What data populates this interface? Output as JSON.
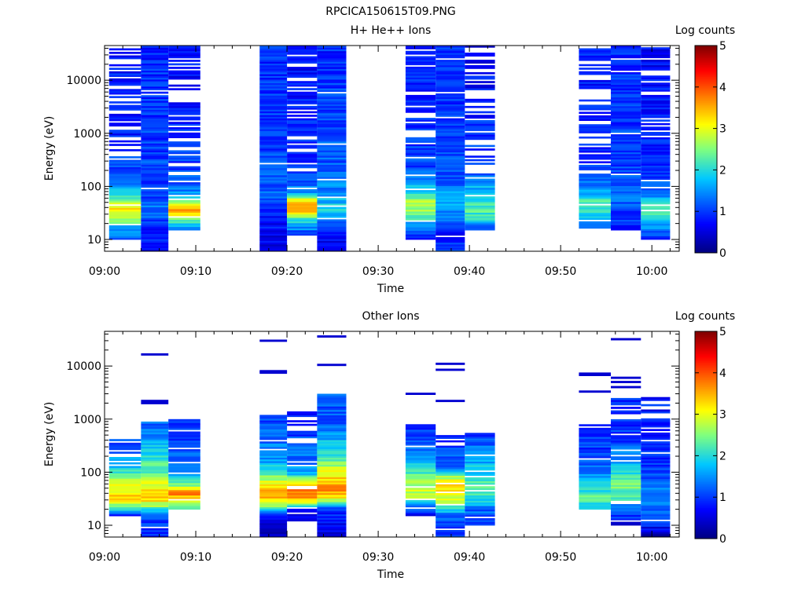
{
  "figure_title": "RPCICA150615T09.PNG",
  "colors": {
    "colormap_stops": [
      "#00007f",
      "#0000ff",
      "#00c8ff",
      "#7fff7f",
      "#ffff00",
      "#ff8000",
      "#ff0000",
      "#7f0000"
    ]
  },
  "chart_data": [
    {
      "type": "heatmap",
      "title": "H+ He++ Ions",
      "xlabel": "Time",
      "ylabel": "Energy (eV)",
      "y_scale": "log",
      "ylim": [
        6,
        45000
      ],
      "xlim": [
        "09:00",
        "10:03"
      ],
      "x_ticks": [
        "09:00",
        "09:10",
        "09:20",
        "09:30",
        "09:40",
        "09:50",
        "10:00"
      ],
      "y_ticks": [
        "10",
        "100",
        "1000",
        "10000"
      ],
      "colorbar": {
        "label": "Log counts",
        "range": [
          0,
          5
        ],
        "ticks": [
          "0",
          "1",
          "2",
          "3",
          "4",
          "5"
        ]
      },
      "columns": [
        {
          "start": "09:00.5",
          "end": "09:04",
          "emin": 10,
          "emax": 40000,
          "profile": [
            [
              10,
              1.1
            ],
            [
              16,
              1.6
            ],
            [
              25,
              2.6
            ],
            [
              35,
              3.2
            ],
            [
              50,
              2.8
            ],
            [
              80,
              1.8
            ],
            [
              150,
              1.1
            ],
            [
              600,
              0.9
            ],
            [
              40000,
              0.8
            ]
          ],
          "gap": 0.35,
          "seed": 1
        },
        {
          "start": "09:04",
          "end": "09:07",
          "emin": 6,
          "emax": 45000,
          "profile": [
            [
              6,
              0.7
            ],
            [
              15,
              0.8
            ],
            [
              25,
              1.2
            ],
            [
              40,
              1.4
            ],
            [
              70,
              1.0
            ],
            [
              200,
              1.1
            ],
            [
              1000,
              1.0
            ],
            [
              45000,
              0.9
            ]
          ],
          "gap": 0.05,
          "seed": 2
        },
        {
          "start": "09:07",
          "end": "09:10.5",
          "emin": 15,
          "emax": 45000,
          "profile": [
            [
              15,
              1.0
            ],
            [
              25,
              2.5
            ],
            [
              35,
              3.8
            ],
            [
              50,
              2.6
            ],
            [
              80,
              1.4
            ],
            [
              200,
              1.0
            ],
            [
              45000,
              0.7
            ]
          ],
          "gap": 0.3,
          "seed": 3
        },
        {
          "start": "09:17",
          "end": "09:20",
          "emin": 6,
          "emax": 45000,
          "profile": [
            [
              6,
              0.5
            ],
            [
              15,
              0.7
            ],
            [
              30,
              0.9
            ],
            [
              60,
              1.2
            ],
            [
              200,
              1.1
            ],
            [
              1000,
              1.0
            ],
            [
              45000,
              0.9
            ]
          ],
          "gap": 0.02,
          "seed": 4
        },
        {
          "start": "09:20",
          "end": "09:23.3",
          "emin": 12,
          "emax": 45000,
          "profile": [
            [
              12,
              0.9
            ],
            [
              25,
              2.2
            ],
            [
              35,
              3.5
            ],
            [
              55,
              3.2
            ],
            [
              80,
              1.4
            ],
            [
              200,
              1.0
            ],
            [
              45000,
              0.7
            ]
          ],
          "gap": 0.3,
          "seed": 5
        },
        {
          "start": "09:23.3",
          "end": "09:26.5",
          "emin": 6,
          "emax": 45000,
          "profile": [
            [
              6,
              0.6
            ],
            [
              15,
              0.8
            ],
            [
              25,
              1.6
            ],
            [
              40,
              2.0
            ],
            [
              60,
              1.6
            ],
            [
              200,
              1.2
            ],
            [
              45000,
              0.9
            ]
          ],
          "gap": 0.05,
          "seed": 6
        },
        {
          "start": "09:33",
          "end": "09:36.3",
          "emin": 10,
          "emax": 45000,
          "profile": [
            [
              10,
              0.9
            ],
            [
              20,
              1.6
            ],
            [
              30,
              2.5
            ],
            [
              50,
              2.7
            ],
            [
              90,
              1.8
            ],
            [
              200,
              1.1
            ],
            [
              45000,
              0.8
            ]
          ],
          "gap": 0.2,
          "seed": 7
        },
        {
          "start": "09:36.3",
          "end": "09:39.5",
          "emin": 6,
          "emax": 45000,
          "profile": [
            [
              6,
              1.0
            ],
            [
              15,
              0.8
            ],
            [
              30,
              1.4
            ],
            [
              60,
              1.8
            ],
            [
              150,
              1.1
            ],
            [
              45000,
              0.9
            ]
          ],
          "gap": 0.08,
          "seed": 8
        },
        {
          "start": "09:39.5",
          "end": "09:42.8",
          "emin": 15,
          "emax": 45000,
          "profile": [
            [
              15,
              1.0
            ],
            [
              25,
              2.0
            ],
            [
              40,
              2.3
            ],
            [
              70,
              1.9
            ],
            [
              200,
              1.1
            ],
            [
              45000,
              0.6
            ]
          ],
          "gap": 0.45,
          "seed": 9
        },
        {
          "start": "09:52",
          "end": "09:55.5",
          "emin": 15,
          "emax": 40000,
          "profile": [
            [
              15,
              0.9
            ],
            [
              30,
              2.1
            ],
            [
              50,
              2.3
            ],
            [
              80,
              1.5
            ],
            [
              200,
              1.0
            ],
            [
              40000,
              0.8
            ]
          ],
          "gap": 0.35,
          "seed": 10
        },
        {
          "start": "09:55.5",
          "end": "09:58.8",
          "emin": 15,
          "emax": 45000,
          "profile": [
            [
              15,
              0.8
            ],
            [
              30,
              1.0
            ],
            [
              60,
              1.3
            ],
            [
              150,
              1.1
            ],
            [
              45000,
              0.9
            ]
          ],
          "gap": 0.05,
          "seed": 11
        },
        {
          "start": "09:58.8",
          "end": "10:02",
          "emin": 10,
          "emax": 45000,
          "profile": [
            [
              10,
              1.0
            ],
            [
              20,
              1.5
            ],
            [
              30,
              2.1
            ],
            [
              50,
              1.9
            ],
            [
              80,
              1.2
            ],
            [
              300,
              0.9
            ],
            [
              45000,
              0.7
            ]
          ],
          "gap": 0.15,
          "seed": 12
        }
      ]
    },
    {
      "type": "heatmap",
      "title": "Other Ions",
      "xlabel": "Time",
      "ylabel": "Energy (eV)",
      "y_scale": "log",
      "ylim": [
        6,
        45000
      ],
      "xlim": [
        "09:00",
        "10:03"
      ],
      "x_ticks": [
        "09:00",
        "09:10",
        "09:20",
        "09:30",
        "09:40",
        "09:50",
        "10:00"
      ],
      "y_ticks": [
        "10",
        "100",
        "1000",
        "10000"
      ],
      "colorbar": {
        "label": "Log counts",
        "range": [
          0,
          5
        ],
        "ticks": [
          "0",
          "1",
          "2",
          "3",
          "4",
          "5"
        ]
      },
      "columns": [
        {
          "start": "09:00.5",
          "end": "09:04",
          "emin": 15,
          "emax": 420,
          "profile": [
            [
              15,
              0.7
            ],
            [
              22,
              2.3
            ],
            [
              35,
              3.4
            ],
            [
              55,
              3.0
            ],
            [
              90,
              2.3
            ],
            [
              150,
              1.6
            ],
            [
              420,
              1.1
            ]
          ],
          "gap": 0.25,
          "seed": 21,
          "extra": []
        },
        {
          "start": "09:04",
          "end": "09:07",
          "emin": 6,
          "emax": 900,
          "profile": [
            [
              6,
              1.0
            ],
            [
              15,
              1.1
            ],
            [
              25,
              2.8
            ],
            [
              35,
              3.5
            ],
            [
              60,
              3.0
            ],
            [
              100,
              2.4
            ],
            [
              250,
              1.9
            ],
            [
              900,
              1.2
            ]
          ],
          "gap": 0.05,
          "seed": 22,
          "extra": [
            2200,
            2000,
            16500
          ]
        },
        {
          "start": "09:07",
          "end": "09:10.5",
          "emin": 20,
          "emax": 1000,
          "profile": [
            [
              20,
              2.0
            ],
            [
              30,
              3.0
            ],
            [
              40,
              3.8
            ],
            [
              60,
              2.4
            ],
            [
              120,
              1.3
            ],
            [
              1000,
              0.9
            ]
          ],
          "gap": 0.3,
          "seed": 23,
          "extra": []
        },
        {
          "start": "09:17",
          "end": "09:20",
          "emin": 6,
          "emax": 1200,
          "profile": [
            [
              6,
              0.4
            ],
            [
              15,
              0.6
            ],
            [
              25,
              2.9
            ],
            [
              35,
              3.6
            ],
            [
              60,
              3.1
            ],
            [
              150,
              1.6
            ],
            [
              1200,
              1.0
            ]
          ],
          "gap": 0.1,
          "seed": 24,
          "extra": [
            7500,
            8000,
            30000
          ]
        },
        {
          "start": "09:20",
          "end": "09:23.3",
          "emin": 12,
          "emax": 1400,
          "profile": [
            [
              12,
              0.5
            ],
            [
              20,
              1.0
            ],
            [
              30,
              3.4
            ],
            [
              40,
              3.9
            ],
            [
              60,
              3.4
            ],
            [
              100,
              1.5
            ],
            [
              1400,
              0.8
            ]
          ],
          "gap": 0.35,
          "seed": 25,
          "extra": []
        },
        {
          "start": "09:23.3",
          "end": "09:26.5",
          "emin": 6,
          "emax": 3000,
          "profile": [
            [
              6,
              0.5
            ],
            [
              20,
              0.9
            ],
            [
              30,
              2.9
            ],
            [
              50,
              3.8
            ],
            [
              100,
              3.0
            ],
            [
              250,
              2.0
            ],
            [
              800,
              1.2
            ],
            [
              3000,
              1.2
            ]
          ],
          "gap": 0.05,
          "seed": 26,
          "extra": [
            10500,
            36000
          ]
        },
        {
          "start": "09:33",
          "end": "09:36.3",
          "emin": 15,
          "emax": 800,
          "profile": [
            [
              15,
              0.7
            ],
            [
              25,
              1.6
            ],
            [
              35,
              2.8
            ],
            [
              60,
              2.7
            ],
            [
              120,
              2.0
            ],
            [
              250,
              1.4
            ],
            [
              800,
              0.9
            ]
          ],
          "gap": 0.3,
          "seed": 27,
          "extra": [
            3000
          ]
        },
        {
          "start": "09:36.3",
          "end": "09:39.5",
          "emin": 6,
          "emax": 500,
          "profile": [
            [
              6,
              1.0
            ],
            [
              15,
              1.2
            ],
            [
              25,
              2.5
            ],
            [
              40,
              3.3
            ],
            [
              70,
              3.1
            ],
            [
              120,
              1.3
            ],
            [
              500,
              0.9
            ]
          ],
          "gap": 0.15,
          "seed": 28,
          "extra": [
            2200,
            8500,
            11000
          ]
        },
        {
          "start": "09:39.5",
          "end": "09:42.8",
          "emin": 10,
          "emax": 550,
          "profile": [
            [
              10,
              1.0
            ],
            [
              20,
              1.3
            ],
            [
              30,
              2.0
            ],
            [
              60,
              2.2
            ],
            [
              150,
              1.7
            ],
            [
              550,
              0.9
            ]
          ],
          "gap": 0.1,
          "seed": 29,
          "extra": []
        },
        {
          "start": "09:52",
          "end": "09:55.5",
          "emin": 20,
          "emax": 800,
          "profile": [
            [
              20,
              2.0
            ],
            [
              35,
              2.3
            ],
            [
              60,
              1.9
            ],
            [
              150,
              1.1
            ],
            [
              800,
              0.9
            ]
          ],
          "gap": 0.3,
          "seed": 30,
          "extra": [
            3300,
            6800,
            7200
          ]
        },
        {
          "start": "09:55.5",
          "end": "09:58.8",
          "emin": 10,
          "emax": 2500,
          "profile": [
            [
              10,
              0.5
            ],
            [
              20,
              1.3
            ],
            [
              35,
              2.2
            ],
            [
              60,
              2.4
            ],
            [
              120,
              1.8
            ],
            [
              400,
              1.0
            ],
            [
              2500,
              0.9
            ]
          ],
          "gap": 0.15,
          "seed": 31,
          "extra": [
            4000,
            5000,
            6000,
            32000
          ]
        },
        {
          "start": "09:58.8",
          "end": "10:02",
          "emin": 6,
          "emax": 2600,
          "profile": [
            [
              6,
              0.3
            ],
            [
              15,
              1.2
            ],
            [
              30,
              1.6
            ],
            [
              70,
              1.2
            ],
            [
              300,
              0.9
            ],
            [
              2600,
              0.8
            ]
          ],
          "gap": 0.2,
          "seed": 32,
          "extra": []
        }
      ]
    }
  ]
}
